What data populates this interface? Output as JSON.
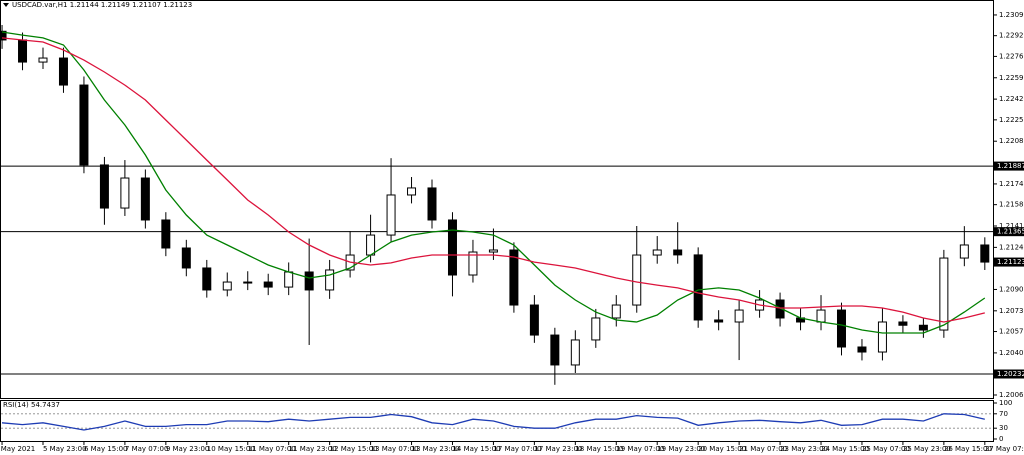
{
  "chart_data": {
    "type": "candlestick",
    "title": "USDCAD.var,H1  1.21144 1.21149 1.21107 1.21123",
    "xlim": [
      -0.1,
      48.4
    ],
    "xticks": [
      {
        "value": 0,
        "label": "4 May 2021"
      },
      {
        "value": 2,
        "label": "5 May 23:00"
      },
      {
        "value": 4,
        "label": "6 May 15:00"
      },
      {
        "value": 6,
        "label": "7 May 07:00"
      },
      {
        "value": 8,
        "label": "9 May 23:00"
      },
      {
        "value": 10,
        "label": "10 May 15:00"
      },
      {
        "value": 12,
        "label": "11 May 07:00"
      },
      {
        "value": 14,
        "label": "11 May 23:00"
      },
      {
        "value": 16,
        "label": "12 May 15:00"
      },
      {
        "value": 18,
        "label": "13 May 07:00"
      },
      {
        "value": 20,
        "label": "13 May 23:00"
      },
      {
        "value": 22,
        "label": "14 May 15:00"
      },
      {
        "value": 24,
        "label": "17 May 07:00"
      },
      {
        "value": 26,
        "label": "17 May 23:00"
      },
      {
        "value": 28,
        "label": "18 May 15:00"
      },
      {
        "value": 30,
        "label": "19 May 07:00"
      },
      {
        "value": 32,
        "label": "19 May 23:00"
      },
      {
        "value": 34,
        "label": "20 May 15:00"
      },
      {
        "value": 36,
        "label": "21 May 07:00"
      },
      {
        "value": 38,
        "label": "23 May 23:00"
      },
      {
        "value": 40,
        "label": "24 May 15:00"
      },
      {
        "value": 42,
        "label": "25 May 07:00"
      },
      {
        "value": 44,
        "label": "25 May 23:00"
      },
      {
        "value": 46,
        "label": "26 May 15:00"
      },
      {
        "value": 48,
        "label": "27 May 07:00"
      }
    ],
    "ylim": [
      1.20041,
      1.23209
    ],
    "yticks": [
      {
        "value": 1.2309,
        "label": "1.23090"
      },
      1.22925,
      {
        "value": 1.2276,
        "label": "1.22760"
      },
      {
        "value": 1.2259,
        "label": "1.22590"
      },
      {
        "value": 1.2242,
        "label": "1.22420"
      },
      1.22255,
      1.22085,
      1.21745,
      {
        "value": 1.2158,
        "label": "1.21580"
      },
      {
        "value": 1.2141,
        "label": "1.21410"
      },
      {
        "value": 1.2124,
        "label": "1.21240"
      },
      1.20905,
      1.20735,
      {
        "value": 1.2057,
        "label": "1.20570"
      },
      {
        "value": 1.204,
        "label": "1.20400"
      },
      1.20065
    ],
    "x": [
      0,
      1,
      2,
      3,
      4,
      5,
      6,
      7,
      8,
      9,
      10,
      11,
      12,
      13,
      14,
      15,
      16,
      17,
      18,
      19,
      20,
      21,
      22,
      23,
      24,
      25,
      26,
      27,
      28,
      29,
      30,
      31,
      32,
      33,
      34,
      35,
      36,
      37,
      38,
      39,
      40,
      41,
      42,
      43,
      44,
      45,
      46,
      47,
      48
    ],
    "open": [
      1.2296,
      1.22891,
      1.22715,
      1.22747,
      1.22532,
      1.21896,
      1.21553,
      1.21792,
      1.21458,
      1.21235,
      1.21076,
      1.20901,
      1.20964,
      1.20964,
      1.20924,
      1.21044,
      1.20901,
      1.2106,
      1.21179,
      1.21338,
      1.21657,
      1.21713,
      1.21458,
      1.2102,
      1.21203,
      1.21219,
      1.20781,
      1.20542,
      1.20304,
      1.20503,
      1.20678,
      1.20781,
      1.21179,
      1.21219,
      1.2118,
      1.20662,
      1.20646,
      1.20741,
      1.20821,
      1.20678,
      1.20646,
      1.20741,
      1.20447,
      1.20407,
      1.20646,
      1.2062,
      1.20582,
      1.21155,
      1.21259
    ],
    "high": [
      1.2301,
      1.2295,
      1.2283,
      1.2283,
      1.226,
      1.2196,
      1.21935,
      1.2186,
      1.2152,
      1.213,
      1.2114,
      1.2104,
      1.2105,
      1.2103,
      1.2112,
      1.2131,
      1.2114,
      1.2137,
      1.215,
      1.2195,
      1.218,
      1.2178,
      1.2152,
      1.213,
      1.2139,
      1.2128,
      1.2086,
      1.206,
      1.2058,
      1.2075,
      1.2086,
      1.2141,
      1.2133,
      1.2144,
      1.2124,
      1.2074,
      1.2082,
      1.209,
      1.2088,
      1.2076,
      1.2086,
      1.208,
      1.2051,
      1.2076,
      1.207,
      1.2068,
      1.2122,
      1.21409,
      1.2132
    ],
    "low": [
      1.2282,
      1.2265,
      1.2266,
      1.2247,
      1.2183,
      1.2142,
      1.2149,
      1.2139,
      1.2117,
      1.2101,
      1.2084,
      1.2085,
      1.209,
      1.2086,
      1.2086,
      1.20463,
      1.2083,
      1.21,
      1.2112,
      1.2128,
      1.2159,
      1.2139,
      1.2085,
      1.2096,
      1.2114,
      1.2072,
      1.2048,
      1.20146,
      1.2024,
      1.2044,
      1.2061,
      1.2072,
      1.2111,
      1.2111,
      1.206,
      1.2058,
      1.20343,
      1.2068,
      1.2061,
      1.2058,
      1.2058,
      1.2038,
      1.2034,
      1.2034,
      1.2056,
      1.2052,
      1.2052,
      1.2109,
      1.2106
    ],
    "close": [
      1.22891,
      1.22715,
      1.22747,
      1.22532,
      1.21896,
      1.21553,
      1.21792,
      1.21458,
      1.21235,
      1.21076,
      1.20901,
      1.20964,
      1.20964,
      1.20924,
      1.21044,
      1.20901,
      1.2106,
      1.21179,
      1.21338,
      1.21657,
      1.21713,
      1.21458,
      1.2102,
      1.21203,
      1.21219,
      1.20781,
      1.20542,
      1.20304,
      1.20503,
      1.20678,
      1.20781,
      1.21179,
      1.21219,
      1.2118,
      1.20662,
      1.20646,
      1.20741,
      1.20821,
      1.20678,
      1.20646,
      1.20741,
      1.20447,
      1.20407,
      1.20646,
      1.2062,
      1.20582,
      1.21155,
      1.21259,
      1.21123
    ],
    "up_color": "#ffffff",
    "down_color": "#000000",
    "series": [
      {
        "color": "#008000",
        "values": [
          1.22954,
          1.2293,
          1.22907,
          1.22851,
          1.22652,
          1.22413,
          1.22214,
          1.21975,
          1.21697,
          1.21498,
          1.21338,
          1.21259,
          1.21179,
          1.211,
          1.21044,
          1.20996,
          1.2102,
          1.21076,
          1.21179,
          1.21283,
          1.21338,
          1.21362,
          1.21378,
          1.21362,
          1.21338,
          1.21259,
          1.211,
          1.2094,
          1.20821,
          1.20725,
          1.20662,
          1.20646,
          1.20702,
          1.20821,
          1.20901,
          1.20917,
          1.20901,
          1.20837,
          1.20757,
          1.20678,
          1.20646,
          1.20622,
          1.20582,
          1.20558,
          1.20558,
          1.20558,
          1.20622,
          1.20725,
          1.20837
        ]
      },
      {
        "color": "#dc143c",
        "values": [
          1.22907,
          1.22891,
          1.22875,
          1.22811,
          1.22731,
          1.22636,
          1.22532,
          1.22413,
          1.22254,
          1.22095,
          1.21935,
          1.21776,
          1.21617,
          1.21498,
          1.21362,
          1.21259,
          1.21179,
          1.21123,
          1.211,
          1.21116,
          1.21155,
          1.21179,
          1.21179,
          1.21179,
          1.21179,
          1.21163,
          1.21123,
          1.211,
          1.21076,
          1.21036,
          1.20996,
          1.20964,
          1.2094,
          1.20917,
          1.20877,
          1.20845,
          1.20821,
          1.20781,
          1.20757,
          1.20757,
          1.20765,
          1.20773,
          1.20773,
          1.20757,
          1.20725,
          1.20678,
          1.20646,
          1.20678,
          1.20718
        ]
      }
    ],
    "levels": [
      1.21887,
      1.21365,
      1.20232
    ],
    "current_price": 1.21123,
    "rsi": {
      "name": "RSI(14)",
      "value": 54.7437,
      "color": "#1e3cb4",
      "ylim": [
        0,
        100
      ],
      "yticks": [
        100,
        70,
        30,
        0
      ],
      "levels": [
        70,
        30
      ],
      "values": [
        45,
        40,
        45,
        35,
        25,
        35,
        50,
        35,
        35,
        40,
        40,
        50,
        50,
        48,
        55,
        50,
        55,
        60,
        60,
        68,
        62,
        45,
        40,
        55,
        50,
        35,
        30,
        30,
        45,
        55,
        55,
        65,
        60,
        58,
        38,
        45,
        50,
        52,
        48,
        45,
        52,
        38,
        40,
        55,
        55,
        50,
        70,
        68,
        54.7437
      ]
    }
  }
}
